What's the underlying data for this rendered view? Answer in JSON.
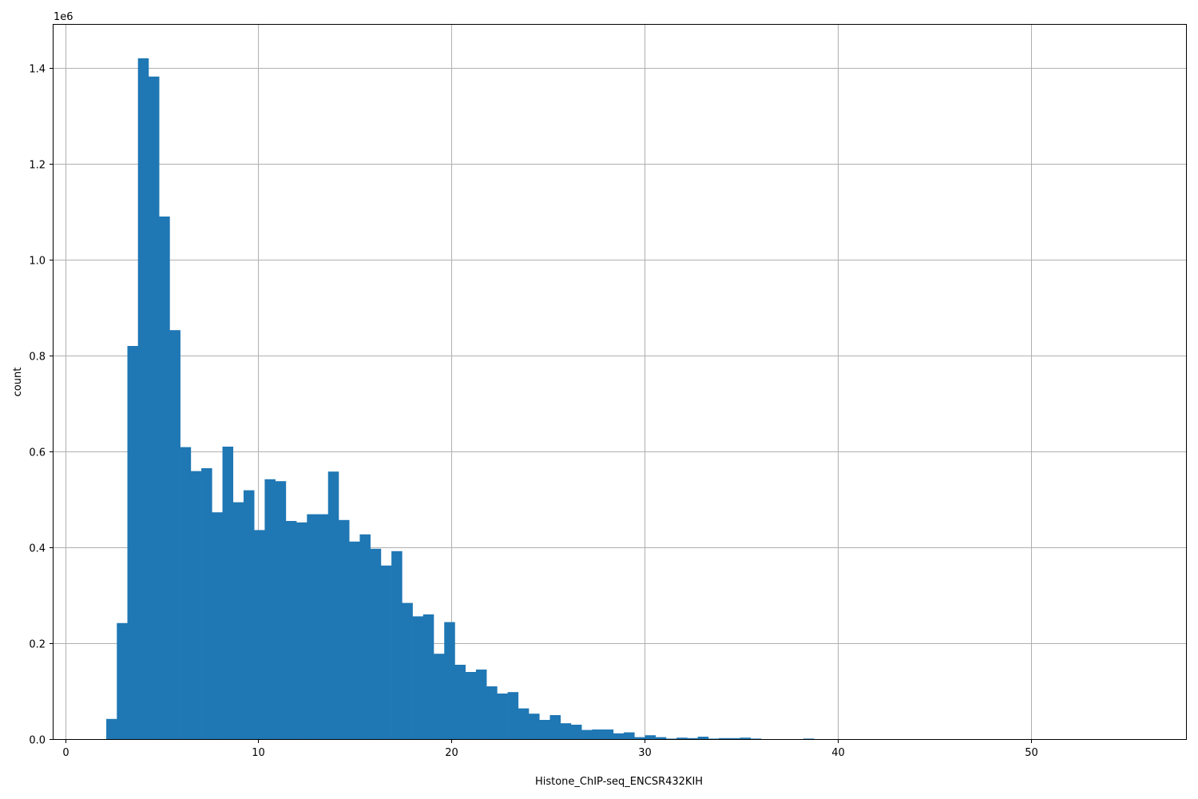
{
  "chart_data": {
    "type": "bar",
    "subtype": "histogram",
    "xlabel": "Histone_ChIP-seq_ENCSR432KIH",
    "ylabel": "count",
    "offset_text": "1e6",
    "xlim": [
      -0.6,
      58.0
    ],
    "ylim": [
      0,
      1.49
    ],
    "y_scale_factor": 1000000,
    "x_ticks": [
      0,
      10,
      20,
      30,
      40,
      50
    ],
    "x_tick_labels": [
      "0",
      "10",
      "20",
      "30",
      "40",
      "50"
    ],
    "y_ticks": [
      0.0,
      0.2,
      0.4,
      0.6,
      0.8,
      1.0,
      1.2,
      1.4
    ],
    "y_tick_labels": [
      "0.0",
      "0.2",
      "0.4",
      "0.6",
      "0.8",
      "1.0",
      "1.2",
      "1.4"
    ],
    "grid": true,
    "bar_color": "#1f77b4",
    "bin_start": 2.13,
    "bin_width": 0.5465,
    "values": [
      0.042,
      0.242,
      0.82,
      1.42,
      1.382,
      1.09,
      0.853,
      0.609,
      0.559,
      0.565,
      0.473,
      0.61,
      0.494,
      0.519,
      0.436,
      0.542,
      0.538,
      0.455,
      0.452,
      0.469,
      0.469,
      0.558,
      0.457,
      0.412,
      0.427,
      0.397,
      0.362,
      0.392,
      0.284,
      0.256,
      0.26,
      0.178,
      0.244,
      0.155,
      0.14,
      0.145,
      0.11,
      0.095,
      0.098,
      0.064,
      0.053,
      0.04,
      0.05,
      0.033,
      0.03,
      0.019,
      0.02,
      0.02,
      0.012,
      0.014,
      0.004,
      0.008,
      0.004,
      0.001,
      0.003,
      0.002,
      0.005,
      0.001,
      0.002,
      0.002,
      0.003,
      0.001,
      0.0,
      0.0,
      0.0,
      0.0,
      0.001,
      0.0,
      0.0,
      0.0,
      0.0,
      0.0,
      0.0,
      0.0,
      0.0,
      0.0,
      0.0,
      0.0,
      0.0,
      0.0,
      0.0,
      0.0,
      0.0,
      0.0,
      0.0,
      0.0,
      0.0,
      0.0,
      0.0,
      0.0,
      0.0,
      0.0,
      0.0,
      0.0,
      0.0,
      0.0,
      0.0,
      0.0,
      0.0,
      0.0
    ]
  }
}
